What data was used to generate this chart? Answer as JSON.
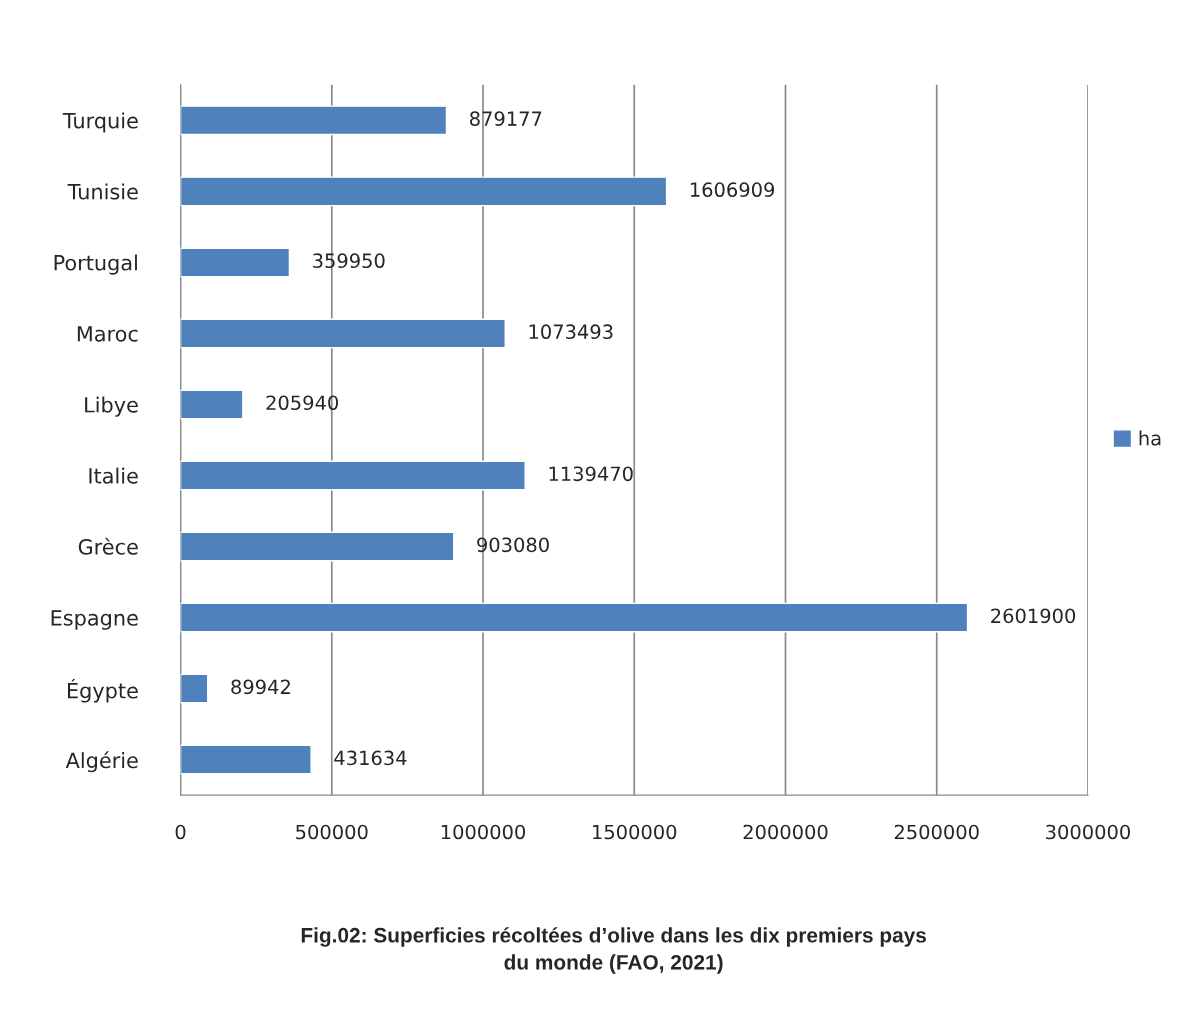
{
  "chart_data": {
    "type": "bar",
    "orientation": "horizontal",
    "title": "Fig.02: Superficies récoltées d’olive dans les dix premiers pays\ndu monde (FAO, 2021)",
    "categories": [
      "Turquie",
      "Tunisie",
      "Portugal",
      "Maroc",
      "Libye",
      "Italie",
      "Grèce",
      "Espagne",
      "Égypte",
      "Algérie"
    ],
    "series": [
      {
        "name": "ha",
        "color": "#4f81bd",
        "values": [
          879177,
          1606909,
          359950,
          1073493,
          205940,
          1139470,
          903080,
          2601900,
          89942,
          431634
        ]
      }
    ],
    "xlim": [
      0,
      3000000
    ],
    "xticks": [
      0,
      500000,
      1000000,
      1500000,
      2000000,
      2500000,
      3000000
    ],
    "grid": "x",
    "legend": "right",
    "data_labels": true
  }
}
